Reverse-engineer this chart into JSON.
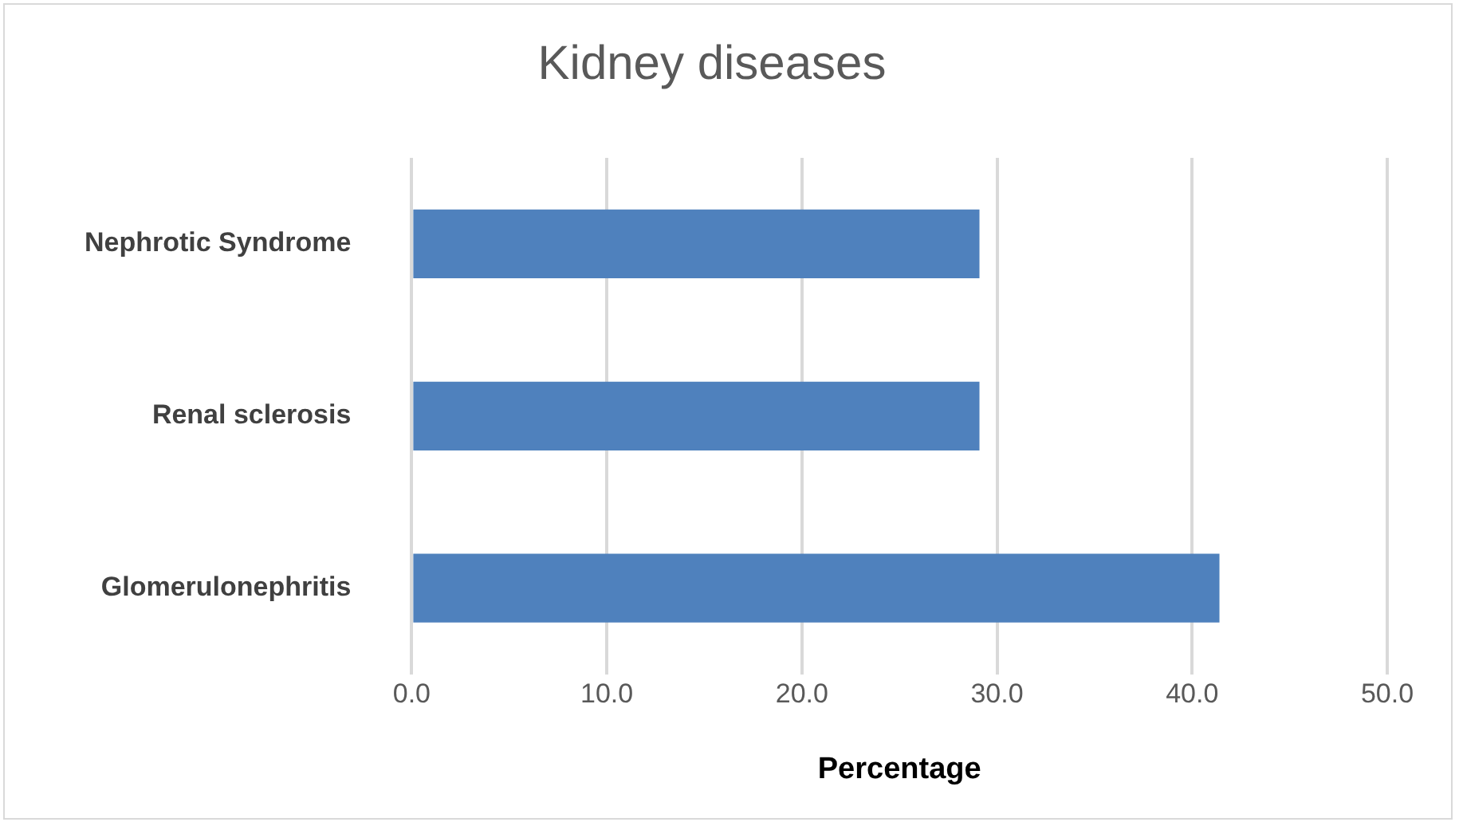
{
  "chart_data": {
    "type": "bar",
    "orientation": "horizontal",
    "title": "Kidney diseases",
    "xlabel": "Percentage",
    "categories": [
      "Nephrotic Syndrome",
      "Renal sclerosis",
      "Glomerulonephritis"
    ],
    "values": [
      29.1,
      29.1,
      41.4
    ],
    "color": "#4f81bd",
    "xlim": [
      0,
      50
    ],
    "xticks": [
      {
        "value": 0,
        "label": "0.0"
      },
      {
        "value": 10,
        "label": "10.0"
      },
      {
        "value": 20,
        "label": "20.0"
      },
      {
        "value": 30,
        "label": "30.0"
      },
      {
        "value": 40,
        "label": "40.0"
      },
      {
        "value": 50,
        "label": "50.0"
      }
    ],
    "grid": "x",
    "legend": false
  }
}
